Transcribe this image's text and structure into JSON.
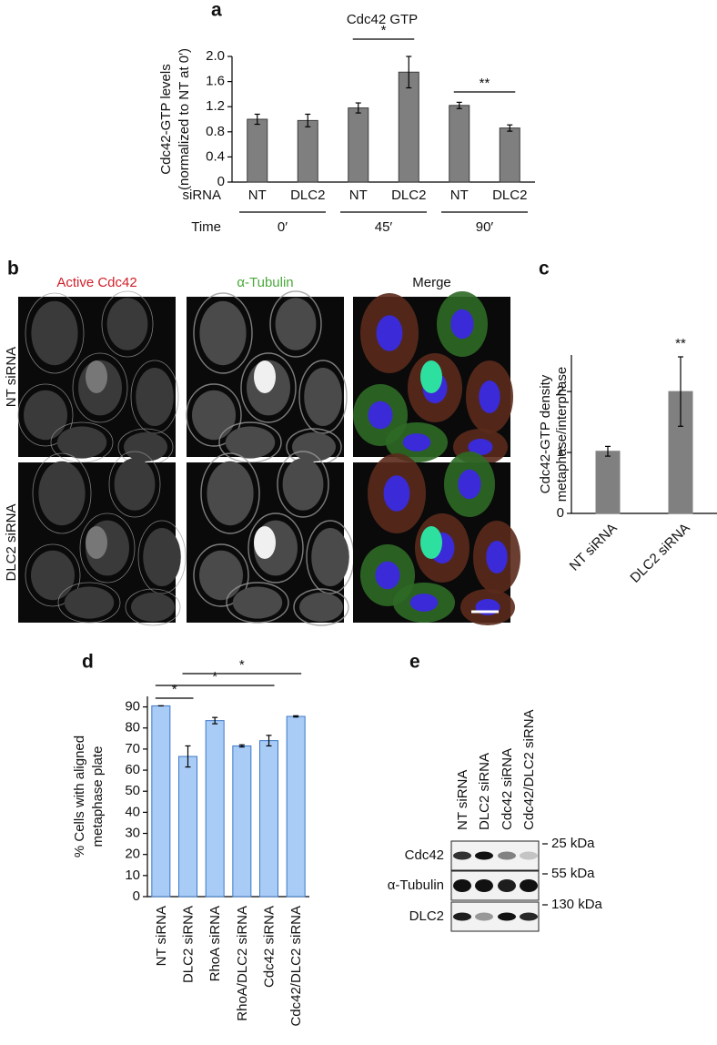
{
  "chart_data": [
    {
      "type": "bar",
      "panel": "a",
      "title": "Cdc42 GTP",
      "ylabel": [
        "Cdc42-GTP levels",
        "(normalized to NT at 0′)"
      ],
      "categories": [
        "NT",
        "DLC2",
        "NT",
        "DLC2",
        "NT",
        "DLC2"
      ],
      "values": [
        1.0,
        0.98,
        1.18,
        1.75,
        1.22,
        0.86
      ],
      "errors": [
        0.08,
        0.1,
        0.08,
        0.25,
        0.05,
        0.05
      ],
      "row_labels": [
        "siRNA",
        "Time"
      ],
      "groups": [
        "0′",
        "45′",
        "90′"
      ],
      "annotations": [
        {
          "text": "*"
        },
        {
          "text": "**"
        }
      ],
      "color": "#7f7f7f",
      "edgecolor": "#3a3a3a",
      "ylim": [
        0,
        2.0
      ],
      "yticks": [
        0,
        0.4,
        0.8,
        1.2,
        1.6,
        {
          "value": 2.0,
          "label": "2.0"
        }
      ]
    },
    {
      "type": "bar",
      "panel": "c",
      "ylabel": [
        "Cdc42-GTP density",
        "metaphase/interphase"
      ],
      "categories": [
        "NT siRNA",
        "DLC2 siRNA"
      ],
      "values": [
        1.02,
        2.0
      ],
      "errors": [
        0.08,
        0.57
      ],
      "annotations": [
        {
          "text": "**"
        }
      ],
      "color": "#808080",
      "edgecolor": "#808080",
      "ylim": [
        0,
        2.6
      ],
      "yticks": [
        0,
        1,
        2
      ]
    },
    {
      "type": "bar",
      "panel": "d",
      "ylabel": [
        "% Cells with aligned",
        "metaphase plate"
      ],
      "categories": [
        "NT siRNA",
        "DLC2 siRNA",
        "RhoA siRNA",
        "RhoA/DLC2 siRNA",
        "Cdc42 siRNA",
        "Cdc42/DLC2 siRNA"
      ],
      "values": [
        90.5,
        66.5,
        83.5,
        71.5,
        74,
        85.5
      ],
      "errors": [
        0,
        5,
        1.5,
        0.5,
        2.5,
        0.3
      ],
      "annotations": [
        {
          "text": "*"
        },
        {
          "text": "*"
        },
        {
          "text": "*"
        }
      ],
      "color": "#a9ccf6",
      "edgecolor": "#3d78c8",
      "ylim": [
        0,
        95
      ],
      "yticks": [
        0,
        10,
        20,
        30,
        40,
        50,
        60,
        70,
        80,
        90
      ]
    }
  ],
  "panel_b": {
    "letter": "b",
    "columns": [
      "Active Cdc42",
      "α-Tubulin",
      "Merge"
    ],
    "rows": [
      "NT siRNA",
      "DLC2 siRNA"
    ]
  },
  "panel_e": {
    "letter": "e",
    "lanes": [
      "NT siRNA",
      "DLC2 siRNA",
      "Cdc42 siRNA",
      "Cdc42/DLC2 siRNA"
    ],
    "rows": [
      "Cdc42",
      "α-Tubulin",
      "DLC2"
    ],
    "markers": [
      "25 kDa",
      "55 kDa",
      "130 kDa"
    ]
  }
}
